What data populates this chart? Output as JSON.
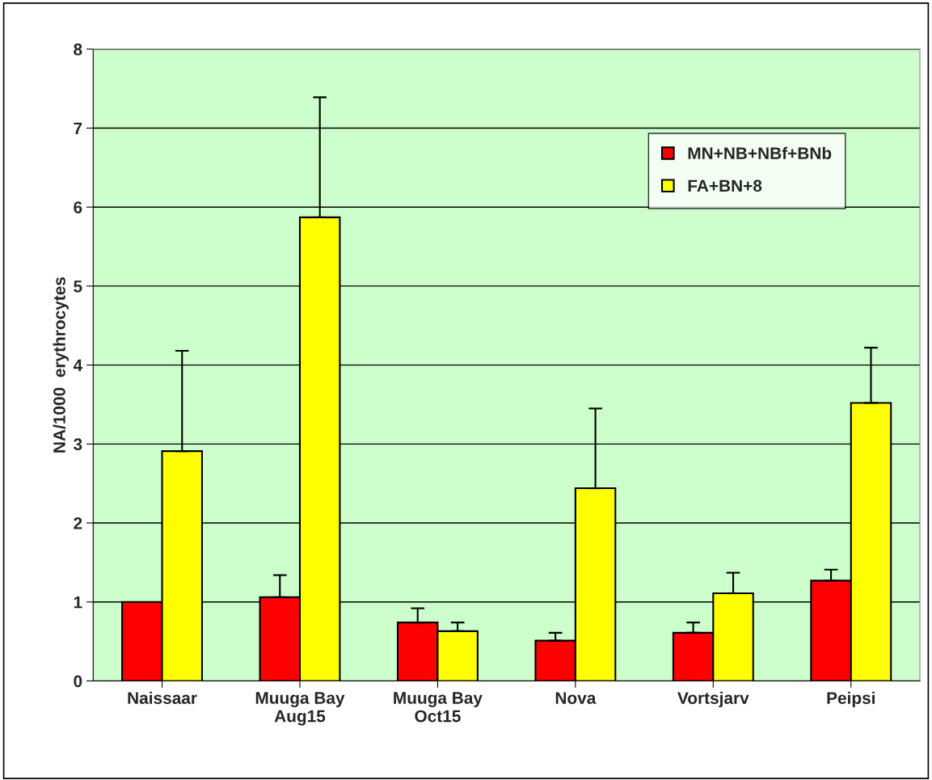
{
  "chart_data": {
    "type": "bar",
    "ylabel": "NA/1000  erythrocytes",
    "categories": [
      "Naissaar",
      "Muuga Bay\nAug15",
      "Muuga Bay\nOct15",
      "Nova",
      "Vortsjarv",
      "Peipsi"
    ],
    "series": [
      {
        "name": "MN+NB+NBf+BNb",
        "color": "#ff0000",
        "values": [
          1.0,
          1.06,
          0.74,
          0.51,
          0.61,
          1.27
        ],
        "errors": [
          null,
          [
            1.06,
            1.34
          ],
          [
            0.74,
            0.92
          ],
          [
            0.51,
            0.61
          ],
          [
            0.61,
            0.74
          ],
          [
            1.27,
            1.41
          ]
        ]
      },
      {
        "name": "FA+BN+8",
        "color": "#ffff00",
        "values": [
          2.91,
          5.87,
          0.63,
          2.44,
          1.11,
          3.52
        ],
        "errors": [
          [
            2.91,
            4.18
          ],
          [
            5.87,
            7.39
          ],
          [
            0.63,
            0.74
          ],
          [
            2.44,
            3.45
          ],
          [
            1.11,
            1.37
          ],
          [
            3.52,
            4.22
          ]
        ]
      }
    ],
    "ylim": [
      0,
      8
    ],
    "yticks": [
      0,
      1,
      2,
      3,
      4,
      5,
      6,
      7,
      8
    ],
    "grid": "y",
    "legend": "top right"
  }
}
